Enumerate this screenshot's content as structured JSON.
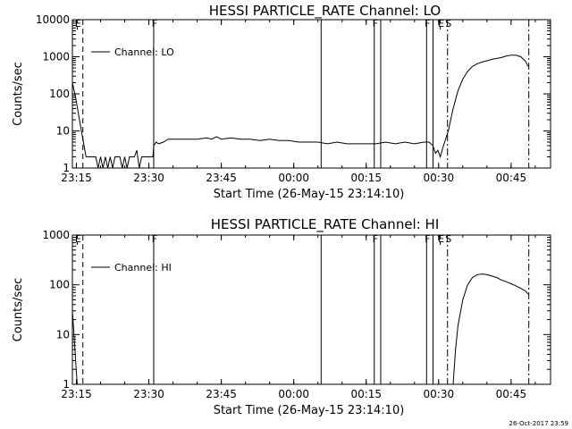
{
  "footer": {
    "timestamp": "26-Oct-2017 23:59"
  },
  "chart_data": [
    {
      "type": "line",
      "title": "HESSI PARTICLE_RATE Channel: LO",
      "xlabel": "Start Time (26-May-15 23:14:10)",
      "ylabel": "Counts/sec",
      "yscale": "log",
      "ylim": [
        1,
        10000
      ],
      "xlim": [
        "23:14:10",
        "00:53:10"
      ],
      "x_ticks": [
        "23:15",
        "23:30",
        "23:45",
        "00:00",
        "00:15",
        "00:30",
        "00:45"
      ],
      "y_ticks": [
        "1",
        "10",
        "100",
        "1000",
        "10000"
      ],
      "legend": {
        "entries": [
          "Channel: LO"
        ],
        "placement": "top-left"
      },
      "markers": [
        {
          "time": "23:15:10",
          "label": "E",
          "style": "dashed-top"
        },
        {
          "time": "23:16:20",
          "label": "",
          "style": "dashed"
        },
        {
          "time": "23:31:00",
          "label": "F",
          "style": "solid"
        },
        {
          "time": "00:05:40",
          "label": "",
          "style": "solid"
        },
        {
          "time": "00:16:40",
          "label": "F",
          "style": "solid"
        },
        {
          "time": "00:18:00",
          "label": "",
          "style": "solid"
        },
        {
          "time": "00:27:30",
          "label": "F",
          "style": "solid"
        },
        {
          "time": "00:28:50",
          "label": "",
          "style": "solid"
        },
        {
          "time": "00:30:20",
          "label": "E",
          "style": "dashed-top"
        },
        {
          "time": "00:31:50",
          "label": "S",
          "style": "dashdot"
        },
        {
          "time": "00:48:40",
          "label": "",
          "style": "dashdot"
        }
      ],
      "series": [
        {
          "name": "Channel: LO",
          "points": [
            [
              "23:14:10",
              200
            ],
            [
              "23:14:50",
              80
            ],
            [
              "23:15:30",
              25
            ],
            [
              "23:16:20",
              6
            ],
            [
              "23:17:00",
              2
            ],
            [
              "23:18:00",
              2
            ],
            [
              "23:19:00",
              2
            ],
            [
              "23:19:30",
              1
            ],
            [
              "23:20:00",
              2
            ],
            [
              "23:20:30",
              1
            ],
            [
              "23:21:00",
              2
            ],
            [
              "23:21:30",
              1
            ],
            [
              "23:22:00",
              2
            ],
            [
              "23:22:30",
              1
            ],
            [
              "23:23:00",
              2
            ],
            [
              "23:24:00",
              2
            ],
            [
              "23:24:30",
              1
            ],
            [
              "23:25:00",
              2
            ],
            [
              "23:25:30",
              1
            ],
            [
              "23:26:00",
              2
            ],
            [
              "23:27:00",
              2
            ],
            [
              "23:27:30",
              3
            ],
            [
              "23:28:00",
              1
            ],
            [
              "23:28:30",
              2
            ],
            [
              "23:29:30",
              2
            ],
            [
              "23:30:50",
              2
            ],
            [
              "23:31:00",
              4
            ],
            [
              "23:31:30",
              5
            ],
            [
              "23:32:00",
              4.5
            ],
            [
              "23:33:00",
              5
            ],
            [
              "23:34:00",
              6
            ],
            [
              "23:36:00",
              6
            ],
            [
              "23:38:00",
              6
            ],
            [
              "23:40:00",
              6
            ],
            [
              "23:42:00",
              6.5
            ],
            [
              "23:43:00",
              6
            ],
            [
              "23:44:00",
              7
            ],
            [
              "23:45:00",
              6
            ],
            [
              "23:47:00",
              6.5
            ],
            [
              "23:49:00",
              6
            ],
            [
              "23:51:00",
              6
            ],
            [
              "23:53:00",
              5.5
            ],
            [
              "23:55:00",
              6
            ],
            [
              "23:57:00",
              5.5
            ],
            [
              "23:59:00",
              5.5
            ],
            [
              "00:01:00",
              5
            ],
            [
              "00:03:00",
              5
            ],
            [
              "00:05:00",
              5
            ],
            [
              "00:07:00",
              4.5
            ],
            [
              "00:09:00",
              5
            ],
            [
              "00:11:00",
              4.5
            ],
            [
              "00:13:00",
              4.5
            ],
            [
              "00:15:00",
              4.5
            ],
            [
              "00:17:00",
              4.5
            ],
            [
              "00:19:00",
              5
            ],
            [
              "00:21:00",
              4.5
            ],
            [
              "00:23:00",
              5
            ],
            [
              "00:25:00",
              4.5
            ],
            [
              "00:27:00",
              5
            ],
            [
              "00:28:00",
              5
            ],
            [
              "00:28:50",
              4
            ],
            [
              "00:29:20",
              2.5
            ],
            [
              "00:29:50",
              3
            ],
            [
              "00:30:20",
              2
            ],
            [
              "00:31:00",
              4
            ],
            [
              "00:32:00",
              10
            ],
            [
              "00:33:00",
              40
            ],
            [
              "00:34:00",
              120
            ],
            [
              "00:35:00",
              250
            ],
            [
              "00:36:00",
              400
            ],
            [
              "00:37:00",
              550
            ],
            [
              "00:38:00",
              650
            ],
            [
              "00:39:00",
              720
            ],
            [
              "00:40:00",
              780
            ],
            [
              "00:41:00",
              850
            ],
            [
              "00:42:00",
              900
            ],
            [
              "00:43:00",
              950
            ],
            [
              "00:44:00",
              1050
            ],
            [
              "00:45:00",
              1100
            ],
            [
              "00:46:00",
              1100
            ],
            [
              "00:47:00",
              1000
            ],
            [
              "00:48:00",
              750
            ],
            [
              "00:48:30",
              550
            ]
          ]
        }
      ]
    },
    {
      "type": "line",
      "title": "HESSI PARTICLE_RATE Channel: HI",
      "xlabel": "Start Time (26-May-15 23:14:10)",
      "ylabel": "Counts/sec",
      "yscale": "log",
      "ylim": [
        1,
        1000
      ],
      "xlim": [
        "23:14:10",
        "00:53:10"
      ],
      "x_ticks": [
        "23:15",
        "23:30",
        "23:45",
        "00:00",
        "00:15",
        "00:30",
        "00:45"
      ],
      "y_ticks": [
        "1",
        "10",
        "100",
        "1000"
      ],
      "legend": {
        "entries": [
          "Channel: HI"
        ],
        "placement": "top-left"
      },
      "markers": [
        {
          "time": "23:15:10",
          "label": "E",
          "style": "dashed-top"
        },
        {
          "time": "23:16:20",
          "label": "",
          "style": "dashed"
        },
        {
          "time": "23:31:00",
          "label": "F",
          "style": "solid"
        },
        {
          "time": "00:05:40",
          "label": "",
          "style": "solid"
        },
        {
          "time": "00:16:40",
          "label": "F",
          "style": "solid"
        },
        {
          "time": "00:18:00",
          "label": "",
          "style": "solid"
        },
        {
          "time": "00:27:30",
          "label": "F",
          "style": "solid"
        },
        {
          "time": "00:28:50",
          "label": "",
          "style": "solid"
        },
        {
          "time": "00:30:20",
          "label": "E",
          "style": "dashed-top"
        },
        {
          "time": "00:31:50",
          "label": "S",
          "style": "dashdot"
        },
        {
          "time": "00:48:40",
          "label": "",
          "style": "dashdot"
        }
      ],
      "series": [
        {
          "name": "Channel: HI",
          "points": [
            [
              "23:14:10",
              30
            ],
            [
              "23:14:30",
              10
            ],
            [
              "23:14:50",
              3
            ],
            [
              "23:15:10",
              1
            ]
          ]
        },
        {
          "name": "Channel: HI",
          "points": [
            [
              "00:33:00",
              1
            ],
            [
              "00:33:30",
              5
            ],
            [
              "00:34:00",
              15
            ],
            [
              "00:35:00",
              50
            ],
            [
              "00:36:00",
              100
            ],
            [
              "00:37:00",
              140
            ],
            [
              "00:38:00",
              160
            ],
            [
              "00:39:00",
              165
            ],
            [
              "00:40:00",
              160
            ],
            [
              "00:41:00",
              150
            ],
            [
              "00:42:00",
              140
            ],
            [
              "00:43:00",
              125
            ],
            [
              "00:44:00",
              115
            ],
            [
              "00:45:00",
              105
            ],
            [
              "00:46:00",
              95
            ],
            [
              "00:47:00",
              85
            ],
            [
              "00:48:00",
              75
            ],
            [
              "00:48:30",
              65
            ]
          ]
        }
      ]
    }
  ]
}
